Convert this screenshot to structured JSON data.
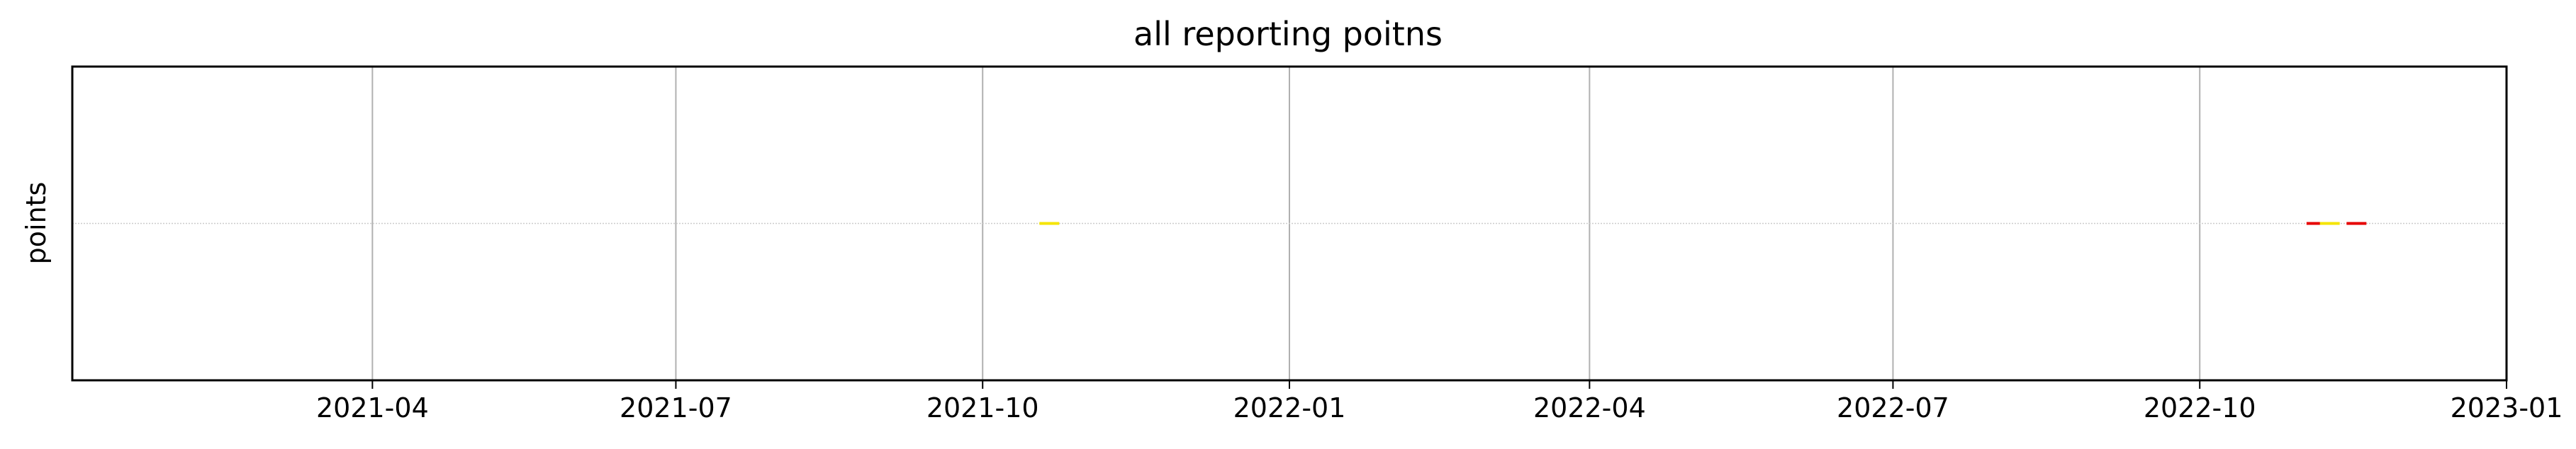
{
  "chart_data": {
    "type": "scatter",
    "title": "all reporting poitns",
    "xlabel": "",
    "ylabel": "points",
    "x_type": "date",
    "xlim": [
      "2021-01-01",
      "2023-01-01"
    ],
    "x_tick_labels": [
      "2021-04",
      "2021-07",
      "2021-10",
      "2022-01",
      "2022-04",
      "2022-07",
      "2022-10",
      "2023-01"
    ],
    "x_ticks": [
      "2021-04-01",
      "2021-07-01",
      "2021-10-01",
      "2022-01-01",
      "2022-04-01",
      "2022-07-01",
      "2022-10-01",
      "2023-01-01"
    ],
    "grid": "x",
    "marker": "horizontal dash",
    "points": [
      {
        "x": "2021-10-21",
        "color": "#f5e400"
      },
      {
        "x": "2022-11-05",
        "color": "#e60000"
      },
      {
        "x": "2022-11-09",
        "color": "#f5e400"
      },
      {
        "x": "2022-11-17",
        "color": "#e60000"
      }
    ]
  }
}
